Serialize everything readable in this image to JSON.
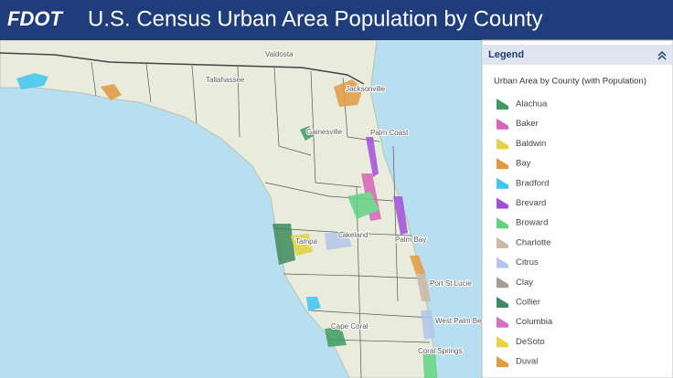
{
  "header": {
    "logo": "FDOT",
    "title": "U.S. Census Urban Area Population by County"
  },
  "map": {
    "labels": [
      "Valdosta",
      "Tallahassee",
      "Jacksonville",
      "Gainesville",
      "Palm Coast",
      "Tampa",
      "Lakeland",
      "Palm Bay",
      "Port St Lucie",
      "West Palm Beach",
      "Coral Springs",
      "Cape Coral"
    ]
  },
  "legend": {
    "title": "Legend",
    "subtitle": "Urban Area by County (with Population)",
    "items": [
      {
        "label": "Alachua",
        "color": "#3f9a62"
      },
      {
        "label": "Baker",
        "color": "#d963b8"
      },
      {
        "label": "Baldwin",
        "color": "#e2d23f"
      },
      {
        "label": "Bay",
        "color": "#e3983c"
      },
      {
        "label": "Bradford",
        "color": "#3ec6f0"
      },
      {
        "label": "Brevard",
        "color": "#a24fdb"
      },
      {
        "label": "Broward",
        "color": "#62d384"
      },
      {
        "label": "Charlotte",
        "color": "#cdb8a3"
      },
      {
        "label": "Citrus",
        "color": "#b3c6ea"
      },
      {
        "label": "Clay",
        "color": "#a39f94"
      },
      {
        "label": "Collier",
        "color": "#3e8c5d"
      },
      {
        "label": "Columbia",
        "color": "#d46fc4"
      },
      {
        "label": "DeSoto",
        "color": "#e9d342"
      },
      {
        "label": "Duval",
        "color": "#e39b42"
      }
    ]
  }
}
